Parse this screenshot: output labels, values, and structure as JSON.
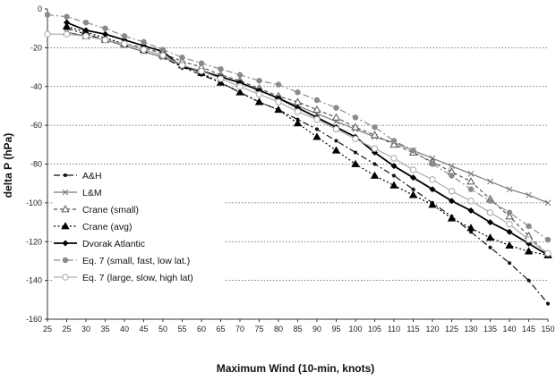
{
  "chart_data": {
    "type": "line",
    "title": "",
    "xlabel": "Maximum Wind (10-min, knots)",
    "ylabel": "delta P  (hPa)",
    "x_ticks": [
      "25",
      "25",
      "30",
      "35",
      "40",
      "45",
      "50",
      "55",
      "60",
      "65",
      "70",
      "75",
      "80",
      "85",
      "90",
      "95",
      "100",
      "105",
      "110",
      "115",
      "120",
      "125",
      "130",
      "135",
      "140",
      "145",
      "150"
    ],
    "ylim": [
      -160,
      0
    ],
    "y_ticks": [
      "0",
      "-20",
      "-40",
      "-60",
      "-80",
      "-100",
      "-120",
      "-140",
      "-160"
    ],
    "grid": "horizontal dotted at y=-20,-40,-60,-80,-100,-120,-140",
    "legend_position": "left-middle",
    "series": [
      {
        "name": "A&H",
        "color": "#111111",
        "line": "dash-dot",
        "marker": "dot",
        "x": [
          25,
          30,
          35,
          40,
          45,
          50,
          55,
          60,
          65,
          70,
          75,
          80,
          85,
          90,
          95,
          100,
          105,
          110,
          115,
          120,
          125,
          130,
          135,
          140,
          145,
          150
        ],
        "y": [
          -10,
          -13,
          -16,
          -19,
          -22,
          -25,
          -30,
          -34,
          -38,
          -43,
          -48,
          -52,
          -57,
          -62,
          -68,
          -74,
          -80,
          -86,
          -93,
          -100,
          -107,
          -115,
          -123,
          -131,
          -140,
          -152
        ]
      },
      {
        "name": "L&M",
        "color": "#777777",
        "line": "solid",
        "marker": "x",
        "x": [
          25,
          30,
          35,
          40,
          45,
          50,
          55,
          60,
          65,
          70,
          75,
          80,
          85,
          90,
          95,
          100,
          105,
          110,
          115,
          120,
          125,
          130,
          135,
          140,
          145,
          150
        ],
        "y": [
          -12,
          -14,
          -16,
          -19,
          -22,
          -25,
          -29,
          -32,
          -35,
          -38,
          -42,
          -46,
          -50,
          -54,
          -58,
          -62,
          -66,
          -69,
          -73,
          -77,
          -81,
          -85,
          -89,
          -93,
          -96,
          -100
        ]
      },
      {
        "name": "Crane (small)",
        "color": "#555555",
        "line": "dashed",
        "marker": "open-triangle",
        "x": [
          25,
          30,
          35,
          40,
          45,
          50,
          55,
          60,
          65,
          70,
          75,
          80,
          85,
          90,
          95,
          100,
          105,
          110,
          115,
          120,
          125,
          130,
          135,
          140,
          145,
          150
        ],
        "y": [
          -12,
          -14,
          -16,
          -18,
          -20,
          -23,
          -27,
          -30,
          -34,
          -37,
          -41,
          -45,
          -48,
          -52,
          -56,
          -61,
          -65,
          -70,
          -74,
          -79,
          -84,
          -89,
          -98,
          -107,
          -117,
          -127
        ]
      },
      {
        "name": "Crane (avg)",
        "color": "#000000",
        "line": "dotted",
        "marker": "filled-triangle",
        "x": [
          25,
          30,
          35,
          40,
          45,
          50,
          55,
          60,
          65,
          70,
          75,
          80,
          85,
          90,
          95,
          100,
          105,
          110,
          115,
          120,
          125,
          130,
          135,
          140,
          145,
          150
        ],
        "y": [
          -9,
          -12,
          -15,
          -18,
          -21,
          -24,
          -29,
          -33,
          -38,
          -43,
          -48,
          -52,
          -59,
          -66,
          -73,
          -80,
          -86,
          -91,
          -96,
          -101,
          -108,
          -113,
          -118,
          -122,
          -125,
          -127
        ]
      },
      {
        "name": "Dvorak Atlantic",
        "color": "#000000",
        "line": "solid-thick",
        "marker": "filled-diamond",
        "x": [
          25,
          30,
          35,
          40,
          45,
          50,
          55,
          60,
          65,
          70,
          75,
          80,
          85,
          90,
          95,
          100,
          105,
          110,
          115,
          120,
          125,
          130,
          135,
          140,
          145,
          150
        ],
        "y": [
          -7,
          -11,
          -13,
          -16,
          -19,
          -22,
          -30,
          -32,
          -35,
          -38,
          -42,
          -46,
          -51,
          -56,
          -61,
          -66,
          -74,
          -81,
          -87,
          -93,
          -99,
          -104,
          -110,
          -115,
          -121,
          -127
        ]
      },
      {
        "name": "Eq. 7 (small, fast, low lat.)",
        "color": "#8a8a8a",
        "line": "dash-dot",
        "marker": "filled-circle",
        "x": [
          20,
          25,
          30,
          35,
          40,
          45,
          50,
          55,
          60,
          65,
          70,
          75,
          80,
          85,
          90,
          95,
          100,
          105,
          110,
          115,
          120,
          125,
          130,
          135,
          140,
          145,
          150
        ],
        "y": [
          -3,
          -4,
          -7,
          -10,
          -14,
          -17,
          -21,
          -25,
          -28,
          -31,
          -34,
          -37,
          -39,
          -43,
          -47,
          -51,
          -56,
          -61,
          -68,
          -73,
          -80,
          -86,
          -93,
          -99,
          -105,
          -112,
          -119
        ]
      },
      {
        "name": "Eq. 7 (large, slow, high lat)",
        "color": "#aaaaaa",
        "line": "solid",
        "marker": "open-circle",
        "x": [
          20,
          25,
          30,
          35,
          40,
          45,
          50,
          55,
          60,
          65,
          70,
          75,
          80,
          85,
          90,
          95,
          100,
          105,
          110,
          115,
          120,
          125,
          130,
          135,
          140,
          145,
          150
        ],
        "y": [
          -13,
          -13,
          -14,
          -16,
          -18,
          -21,
          -24,
          -29,
          -32,
          -36,
          -40,
          -44,
          -48,
          -53,
          -57,
          -62,
          -67,
          -72,
          -77,
          -83,
          -88,
          -94,
          -99,
          -105,
          -111,
          -119,
          -126
        ]
      }
    ]
  }
}
